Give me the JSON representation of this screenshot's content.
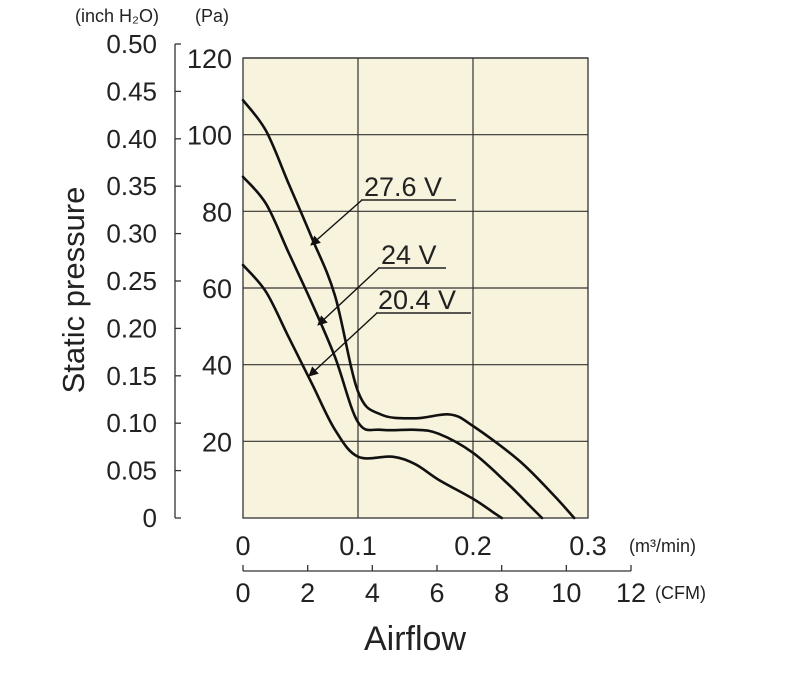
{
  "chart_data": {
    "type": "line",
    "title": "",
    "ylabel": "Static pressure",
    "xlabel": "Airflow",
    "units": {
      "inch_h2o": "(inch H₂O)",
      "pa": "(Pa)",
      "m3min": "(m³/min)",
      "cfm": "(CFM)"
    },
    "plot_background": "#f8f3dc",
    "grid": true,
    "axes": {
      "x_m3min": {
        "range": [
          0,
          0.3
        ],
        "ticks": [
          "0",
          "0.1",
          "0.2",
          "0.3"
        ],
        "values": [
          0,
          0.1,
          0.2,
          0.3
        ]
      },
      "x_cfm": {
        "range": [
          0,
          12
        ],
        "ticks": [
          "0",
          "2",
          "4",
          "6",
          "8",
          "10",
          "12"
        ],
        "values": [
          0,
          2,
          4,
          6,
          8,
          10,
          12
        ]
      },
      "y_pa": {
        "range": [
          0,
          120
        ],
        "ticks": [
          "120",
          "100",
          "80",
          "60",
          "40",
          "20"
        ],
        "values": [
          120,
          100,
          80,
          60,
          40,
          20
        ]
      },
      "y_inch": {
        "range": [
          0,
          0.5
        ],
        "ticks": [
          "0.50",
          "0.45",
          "0.40",
          "0.35",
          "0.30",
          "0.25",
          "0.20",
          "0.15",
          "0.10",
          "0.05",
          "0"
        ],
        "values": [
          0.5,
          0.45,
          0.4,
          0.35,
          0.3,
          0.25,
          0.2,
          0.15,
          0.1,
          0.05,
          0
        ]
      }
    },
    "series": [
      {
        "name": "27.6 V",
        "x": [
          0,
          0.02,
          0.04,
          0.06,
          0.08,
          0.1,
          0.12,
          0.15,
          0.18,
          0.2,
          0.24,
          0.27,
          0.288
        ],
        "y": [
          109,
          101,
          87,
          73,
          58,
          33,
          27,
          26,
          27,
          24,
          15,
          6,
          0
        ]
      },
      {
        "name": "24 V",
        "x": [
          0,
          0.02,
          0.04,
          0.06,
          0.08,
          0.1,
          0.12,
          0.15,
          0.17,
          0.2,
          0.23,
          0.25,
          0.26
        ],
        "y": [
          89,
          82,
          69,
          56,
          42,
          25,
          23,
          23,
          22,
          17,
          9,
          3,
          0
        ]
      },
      {
        "name": "20.4 V",
        "x": [
          0,
          0.02,
          0.04,
          0.06,
          0.08,
          0.1,
          0.13,
          0.15,
          0.17,
          0.2,
          0.22,
          0.225
        ],
        "y": [
          66,
          59,
          47,
          35,
          23,
          16,
          16,
          14,
          10,
          5,
          1,
          0
        ]
      }
    ],
    "annotations": [
      {
        "series": "27.6 V",
        "text": "27.6 V"
      },
      {
        "series": "24 V",
        "text": "24 V"
      },
      {
        "series": "20.4 V",
        "text": "20.4 V"
      }
    ]
  }
}
